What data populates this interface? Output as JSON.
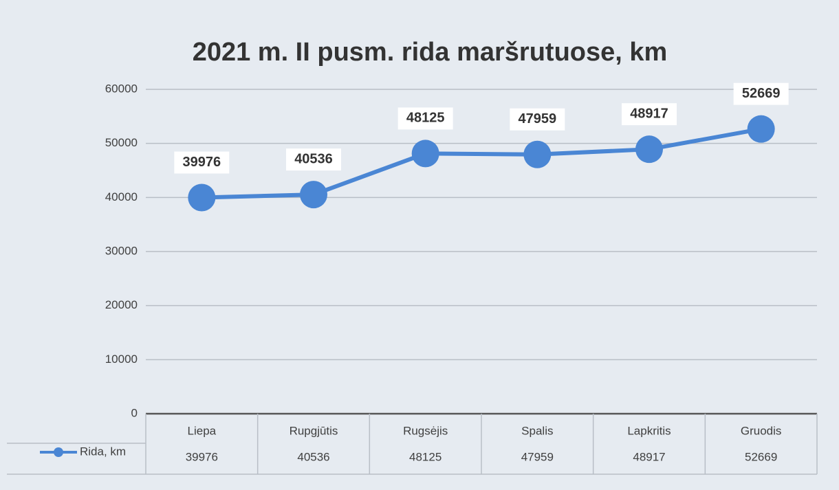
{
  "chart_data": {
    "type": "line",
    "title": "2021 m. II pusm. rida maršrutuose, km",
    "categories": [
      "Liepa",
      "Rupgjūtis",
      "Rugsėjis",
      "Spalis",
      "Lapkritis",
      "Gruodis"
    ],
    "series": [
      {
        "name": "Rida, km",
        "color": "#4a86d4",
        "values": [
          39976,
          40536,
          48125,
          47959,
          48917,
          52669
        ]
      }
    ],
    "ylim": [
      0,
      60000
    ],
    "yticks": [
      0,
      10000,
      20000,
      30000,
      40000,
      50000,
      60000
    ],
    "grid": true
  }
}
